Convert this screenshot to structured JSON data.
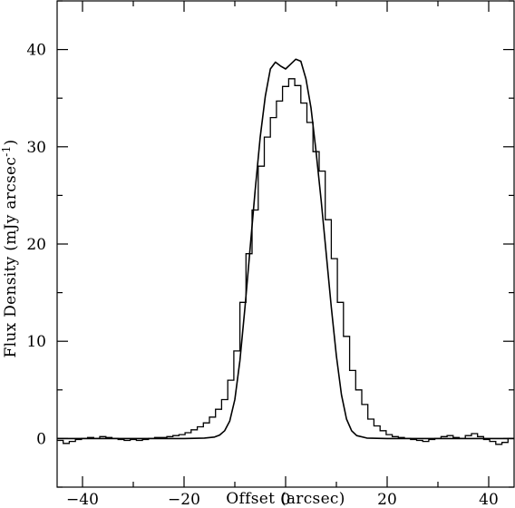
{
  "chart_data": {
    "type": "line",
    "xlabel": "Offset (arcsec)",
    "ylabel": "Flux Density (mJy arcsec",
    "ylabel_superscript": "-1",
    "ylabel_suffix": ")",
    "xlim": [
      -45,
      45
    ],
    "ylim": [
      -5,
      45
    ],
    "x_ticks": [
      -40,
      -20,
      0,
      20,
      40
    ],
    "x_tick_labels": [
      "−40",
      "−20",
      "0",
      "20",
      "40"
    ],
    "y_ticks": [
      0,
      10,
      20,
      30,
      40
    ],
    "y_tick_labels": [
      "0",
      "10",
      "20",
      "30",
      "40"
    ],
    "x_minor_step": 10,
    "y_minor_step": 5,
    "grid": false,
    "series": [
      {
        "style": "histogram",
        "bin_width": 1.2,
        "x": [
          -45,
          -43.8,
          -42.6,
          -41.4,
          -40.2,
          -39.0,
          -37.8,
          -36.6,
          -35.4,
          -34.2,
          -33.0,
          -31.8,
          -30.6,
          -29.4,
          -28.2,
          -27.0,
          -25.8,
          -24.6,
          -23.4,
          -22.2,
          -21.0,
          -19.8,
          -18.6,
          -17.4,
          -16.2,
          -15.0,
          -13.8,
          -12.6,
          -11.4,
          -10.2,
          -9.0,
          -7.8,
          -6.6,
          -5.4,
          -4.2,
          -3.0,
          -1.8,
          -0.6,
          0.6,
          1.8,
          3.0,
          4.2,
          5.4,
          6.6,
          7.8,
          9.0,
          10.2,
          11.4,
          12.6,
          13.8,
          15.0,
          16.2,
          17.4,
          18.6,
          19.8,
          21.0,
          22.2,
          23.4,
          24.6,
          25.8,
          27.0,
          28.2,
          29.4,
          30.6,
          31.8,
          33.0,
          34.2,
          35.4,
          36.6,
          37.8,
          39.0,
          40.2,
          41.4,
          42.6,
          43.8
        ],
        "values": [
          -0.2,
          -0.5,
          -0.3,
          -0.1,
          0.0,
          0.1,
          0.0,
          0.2,
          0.1,
          0.0,
          -0.1,
          -0.2,
          -0.1,
          -0.2,
          -0.1,
          0.0,
          0.1,
          0.1,
          0.2,
          0.3,
          0.4,
          0.6,
          0.9,
          1.2,
          1.6,
          2.2,
          3.0,
          4.0,
          6.0,
          9.0,
          14.0,
          19.0,
          23.5,
          28.0,
          31.0,
          33.0,
          34.7,
          36.2,
          37.0,
          36.3,
          34.5,
          32.5,
          29.5,
          27.5,
          22.5,
          18.5,
          14.0,
          10.5,
          7.0,
          5.0,
          3.5,
          2.0,
          1.3,
          0.8,
          0.4,
          0.2,
          0.1,
          0.0,
          -0.1,
          -0.2,
          -0.3,
          -0.1,
          0.0,
          0.2,
          0.3,
          0.1,
          0.0,
          0.3,
          0.5,
          0.2,
          -0.1,
          -0.3,
          -0.6,
          -0.4,
          0.0
        ]
      },
      {
        "style": "line",
        "x": [
          -45,
          -20,
          -16,
          -14,
          -13,
          -12,
          -11,
          -10,
          -9,
          -8,
          -7,
          -6,
          -5,
          -4,
          -3,
          -2,
          -1,
          0,
          1,
          2,
          3,
          4,
          5,
          6,
          7,
          8,
          9,
          10,
          11,
          12,
          13,
          14,
          16,
          20,
          45
        ],
        "values": [
          0,
          0,
          0.05,
          0.15,
          0.35,
          0.8,
          1.8,
          4.0,
          8.0,
          13.5,
          19.5,
          25.5,
          31.0,
          35.2,
          38.0,
          38.7,
          38.3,
          38.0,
          38.5,
          39.0,
          38.8,
          37.0,
          34.0,
          29.5,
          24.5,
          19.0,
          13.5,
          8.5,
          4.5,
          2.0,
          0.8,
          0.3,
          0.05,
          0,
          0
        ]
      }
    ]
  }
}
